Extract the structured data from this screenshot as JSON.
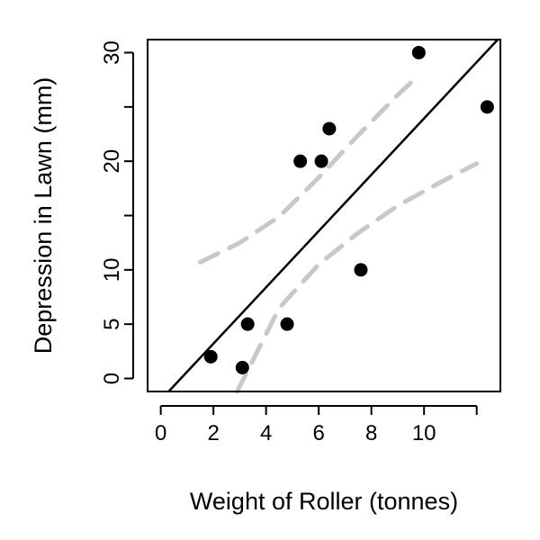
{
  "chart_data": {
    "type": "scatter",
    "title": "",
    "xlabel": "Weight of Roller (tonnes)",
    "ylabel": "Depression in Lawn (mm)",
    "xlim": [
      -0.5,
      12.9
    ],
    "ylim": [
      -1.2,
      31.2
    ],
    "x_ticks": [
      0,
      2,
      4,
      6,
      8,
      10,
      12
    ],
    "x_tick_labels": [
      "0",
      "2",
      "4",
      "6",
      "8",
      "10",
      ""
    ],
    "y_ticks": [
      0,
      5,
      10,
      15,
      20,
      25,
      30
    ],
    "y_tick_labels": [
      "0",
      "5",
      "10",
      "",
      "20",
      "",
      "30"
    ],
    "grid": false,
    "points": {
      "x": [
        1.9,
        3.1,
        3.3,
        4.8,
        5.3,
        6.1,
        6.4,
        7.6,
        9.8,
        12.4
      ],
      "y": [
        2,
        1,
        5,
        5,
        20,
        20,
        23,
        10,
        30,
        25
      ]
    },
    "fit_line": {
      "x": [
        0.3,
        12.8
      ],
      "y": [
        -1.2,
        31.2
      ]
    },
    "band_upper": {
      "x": [
        1.5,
        3.0,
        4.5,
        6.0,
        7.5,
        9.0,
        9.8
      ],
      "y": [
        10.7,
        12.5,
        14.9,
        18.5,
        22.4,
        26.1,
        27.9
      ]
    },
    "band_lower": {
      "x": [
        2.9,
        4.5,
        6.0,
        7.5,
        9.0,
        10.5,
        12.0
      ],
      "y": [
        -1.2,
        6.5,
        10.5,
        13.4,
        15.9,
        17.9,
        19.8
      ]
    },
    "colors": {
      "points": "#000000",
      "fit_line": "#000000",
      "band": "#c8c8c8",
      "axes": "#000000"
    }
  }
}
